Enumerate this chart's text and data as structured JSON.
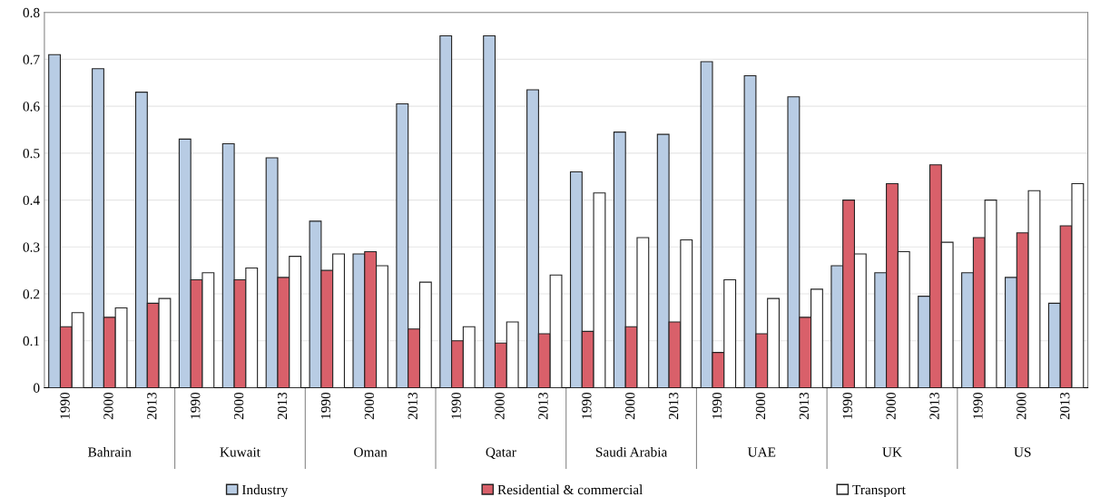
{
  "chart_data": {
    "type": "bar",
    "categories": [
      "1990",
      "2000",
      "2013",
      "1990",
      "2000",
      "2013",
      "1990",
      "2000",
      "2013",
      "1990",
      "2000",
      "2013",
      "1990",
      "2000",
      "2013",
      "1990",
      "2000",
      "2013",
      "1990",
      "2000",
      "2013",
      "1990",
      "2000",
      "2013"
    ],
    "annotations": [
      "Bahrain",
      "Kuwait",
      "Oman",
      "Qatar",
      "Saudi Arabia",
      "UAE",
      "UK",
      "US"
    ],
    "series": [
      {
        "name": "Industry",
        "color": "#b8cce4",
        "values": [
          0.71,
          0.68,
          0.63,
          0.53,
          0.52,
          0.49,
          0.355,
          0.285,
          0.605,
          0.75,
          0.75,
          0.635,
          0.46,
          0.545,
          0.54,
          0.695,
          0.665,
          0.62,
          0.26,
          0.245,
          0.195,
          0.245,
          0.235,
          0.18
        ]
      },
      {
        "name": "Residential & commercial",
        "color": "#d9606a",
        "values": [
          0.13,
          0.15,
          0.18,
          0.23,
          0.23,
          0.235,
          0.25,
          0.29,
          0.125,
          0.1,
          0.095,
          0.115,
          0.12,
          0.13,
          0.14,
          0.075,
          0.115,
          0.15,
          0.4,
          0.435,
          0.475,
          0.32,
          0.33,
          0.345
        ]
      },
      {
        "name": "Transport",
        "color": "#ffffff",
        "values": [
          0.16,
          0.17,
          0.19,
          0.245,
          0.255,
          0.28,
          0.285,
          0.26,
          0.225,
          0.13,
          0.14,
          0.24,
          0.415,
          0.32,
          0.315,
          0.23,
          0.19,
          0.21,
          0.285,
          0.29,
          0.31,
          0.4,
          0.42,
          0.435
        ]
      }
    ],
    "ylim": [
      0,
      0.8
    ],
    "yticks": [
      0,
      0.1,
      0.2,
      0.3,
      0.4,
      0.5,
      0.6,
      0.7,
      0.8
    ],
    "grid": "y",
    "legend": "bottom"
  }
}
